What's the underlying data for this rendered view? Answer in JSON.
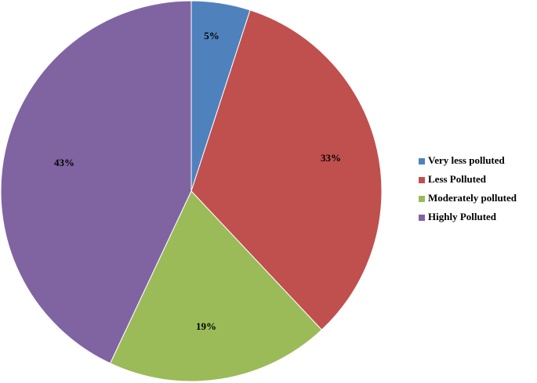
{
  "chart_data": {
    "type": "pie",
    "title": "",
    "categories": [
      "Very less polluted",
      "Less Polluted",
      "Moderately polluted",
      "Highly Polluted"
    ],
    "values": [
      5,
      33,
      19,
      43
    ],
    "labels": [
      "5%",
      "33%",
      "19%",
      "43%"
    ],
    "colors": [
      "#4f81bd",
      "#c0504d",
      "#9bbb59",
      "#8064a2"
    ],
    "legend_placement": "right",
    "start_angle": "top, clockwise"
  }
}
